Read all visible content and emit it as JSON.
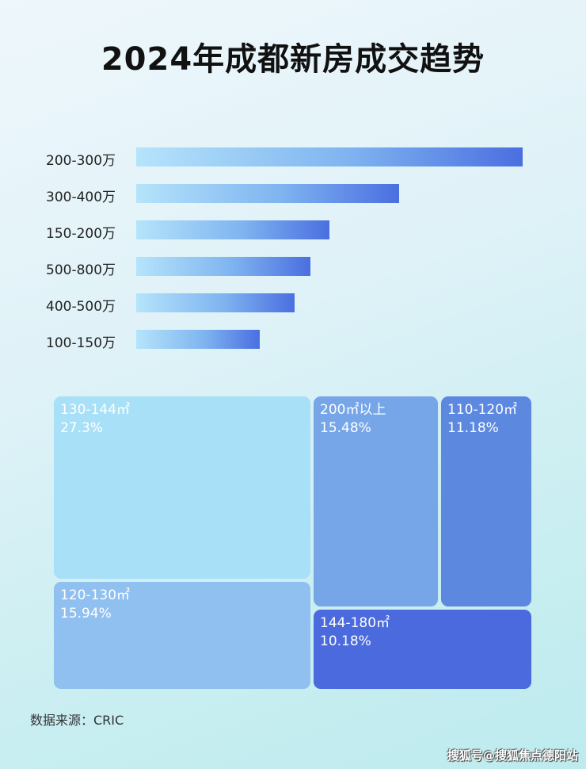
{
  "chart_data": [
    {
      "type": "bar",
      "orientation": "horizontal",
      "title": "2024年成都新房成交趋势",
      "categories": [
        "200-300万",
        "300-400万",
        "150-200万",
        "500-800万",
        "400-500万",
        "100-150万"
      ],
      "values": [
        100,
        68,
        50,
        45,
        41,
        32
      ],
      "value_note": "relative bar length, max=100; no values printed",
      "colors": [
        "#b5e4fb",
        "#4a6fe0"
      ]
    },
    {
      "type": "treemap",
      "items": [
        {
          "label": "130-144㎡",
          "value": "27.3%",
          "color": "#a8e0f8"
        },
        {
          "label": "120-130㎡",
          "value": "15.94%",
          "color": "#8fc0f0"
        },
        {
          "label": "200㎡以上",
          "value": "15.48%",
          "color": "#76a6e8"
        },
        {
          "label": "110-120㎡",
          "value": "11.18%",
          "color": "#5c88e0"
        },
        {
          "label": "144-180㎡",
          "value": "10.18%",
          "color": "#4a6ade"
        }
      ]
    }
  ],
  "source": "数据来源：CRIC",
  "watermark": "搜狐号@搜狐焦点德阳站"
}
